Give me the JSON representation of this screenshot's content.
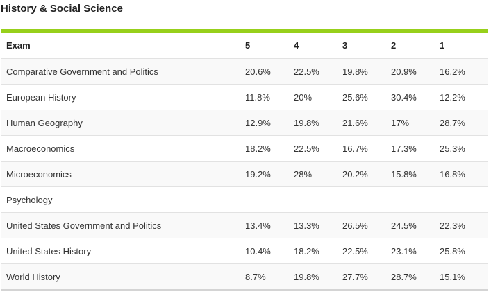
{
  "title": "History & Social Science",
  "accent_color": "#97d01b",
  "table": {
    "headers": [
      "Exam",
      "5",
      "4",
      "3",
      "2",
      "1"
    ],
    "rows": [
      [
        "Comparative Government and Politics",
        "20.6%",
        "22.5%",
        "19.8%",
        "20.9%",
        "16.2%"
      ],
      [
        "European History",
        "11.8%",
        "20%",
        "25.6%",
        "30.4%",
        "12.2%"
      ],
      [
        "Human Geography",
        "12.9%",
        "19.8%",
        "21.6%",
        "17%",
        "28.7%"
      ],
      [
        "Macroeconomics",
        "18.2%",
        "22.5%",
        "16.7%",
        "17.3%",
        "25.3%"
      ],
      [
        "Microeconomics",
        "19.2%",
        "28%",
        "20.2%",
        "15.8%",
        "16.8%"
      ],
      [
        "Psychology",
        "",
        "",
        "",
        "",
        ""
      ],
      [
        "United States Government and Politics",
        "13.4%",
        "13.3%",
        "26.5%",
        "24.5%",
        "22.3%"
      ],
      [
        "United States History",
        "10.4%",
        "18.2%",
        "22.5%",
        "23.1%",
        "25.8%"
      ],
      [
        "World History",
        "8.7%",
        "19.8%",
        "27.7%",
        "28.7%",
        "15.1%"
      ]
    ]
  }
}
